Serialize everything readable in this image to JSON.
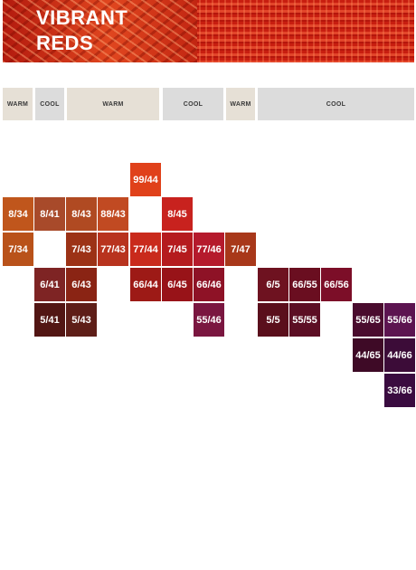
{
  "header": {
    "title_line1": "VIBRANT",
    "title_line2": "REDS"
  },
  "tags": [
    {
      "label": "WARM",
      "type": "warm"
    },
    {
      "label": "COOL",
      "type": "cool"
    },
    {
      "label": "WARM",
      "type": "warm"
    },
    {
      "label": "COOL",
      "type": "cool"
    },
    {
      "label": "WARM",
      "type": "warm"
    },
    {
      "label": "COOL",
      "type": "cool"
    }
  ],
  "swatches": [
    {
      "label": "99/44",
      "color": "#e0411a"
    },
    {
      "label": "8/34",
      "color": "#c0561c"
    },
    {
      "label": "8/41",
      "color": "#a84a2a"
    },
    {
      "label": "8/43",
      "color": "#b04a22"
    },
    {
      "label": "88/43",
      "color": "#c14a22"
    },
    {
      "label": "8/45",
      "color": "#c8221e"
    },
    {
      "label": "7/34",
      "color": "#b9521a"
    },
    {
      "label": "7/43",
      "color": "#9c3216"
    },
    {
      "label": "77/43",
      "color": "#b8331e"
    },
    {
      "label": "77/44",
      "color": "#c92a1c"
    },
    {
      "label": "7/45",
      "color": "#b51b1e"
    },
    {
      "label": "77/46",
      "color": "#b51a2c"
    },
    {
      "label": "7/47",
      "color": "#a8381a"
    },
    {
      "label": "6/41",
      "color": "#7e2424"
    },
    {
      "label": "6/43",
      "color": "#8a2414"
    },
    {
      "label": "66/44",
      "color": "#9d1a16"
    },
    {
      "label": "6/45",
      "color": "#981318"
    },
    {
      "label": "66/46",
      "color": "#8e1226"
    },
    {
      "label": "6/5",
      "color": "#6e1220"
    },
    {
      "label": "66/55",
      "color": "#6a0e20"
    },
    {
      "label": "66/56",
      "color": "#7c0e28"
    },
    {
      "label": "5/41",
      "color": "#521614"
    },
    {
      "label": "5/43",
      "color": "#5e1e18"
    },
    {
      "label": "55/46",
      "color": "#7a1640"
    },
    {
      "label": "5/5",
      "color": "#5a0f1c"
    },
    {
      "label": "55/55",
      "color": "#5c0e24"
    },
    {
      "label": "55/65",
      "color": "#4a0c2e"
    },
    {
      "label": "55/66",
      "color": "#5c1450"
    },
    {
      "label": "44/65",
      "color": "#3e0a26"
    },
    {
      "label": "44/66",
      "color": "#3c0c38"
    },
    {
      "label": "33/66",
      "color": "#3a0c40"
    }
  ]
}
